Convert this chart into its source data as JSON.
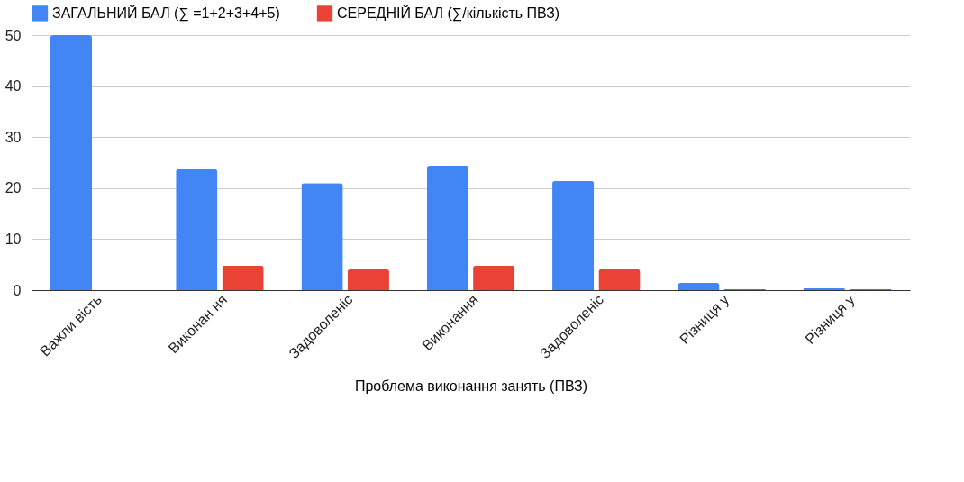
{
  "chart_data": {
    "type": "bar",
    "xlabel": "Проблема виконання занять (ПВЗ)",
    "categories": [
      "Важли вість",
      "Виконан ня",
      "Задоволеніс",
      "Виконання",
      "Задоволеніс",
      "Різниця у",
      "Різниця у"
    ],
    "series": [
      {
        "name": "ЗАГАЛЬНИЙ БАЛ (∑ =1+2+3+4+5)",
        "color": "#4285f4",
        "values": [
          50,
          23.7,
          21.0,
          24.4,
          21.4,
          1.4,
          0.4
        ]
      },
      {
        "name": "СЕРЕДНІЙ БАЛ (∑/кількість ПВЗ)",
        "color": "#ea4335",
        "values": [
          null,
          4.8,
          4.1,
          4.8,
          4.1,
          0.2,
          0.2
        ]
      }
    ],
    "ylim": [
      0,
      50
    ],
    "yticks": [
      0,
      10,
      20,
      30,
      40,
      50
    ],
    "grid": "y",
    "legend": "top"
  }
}
